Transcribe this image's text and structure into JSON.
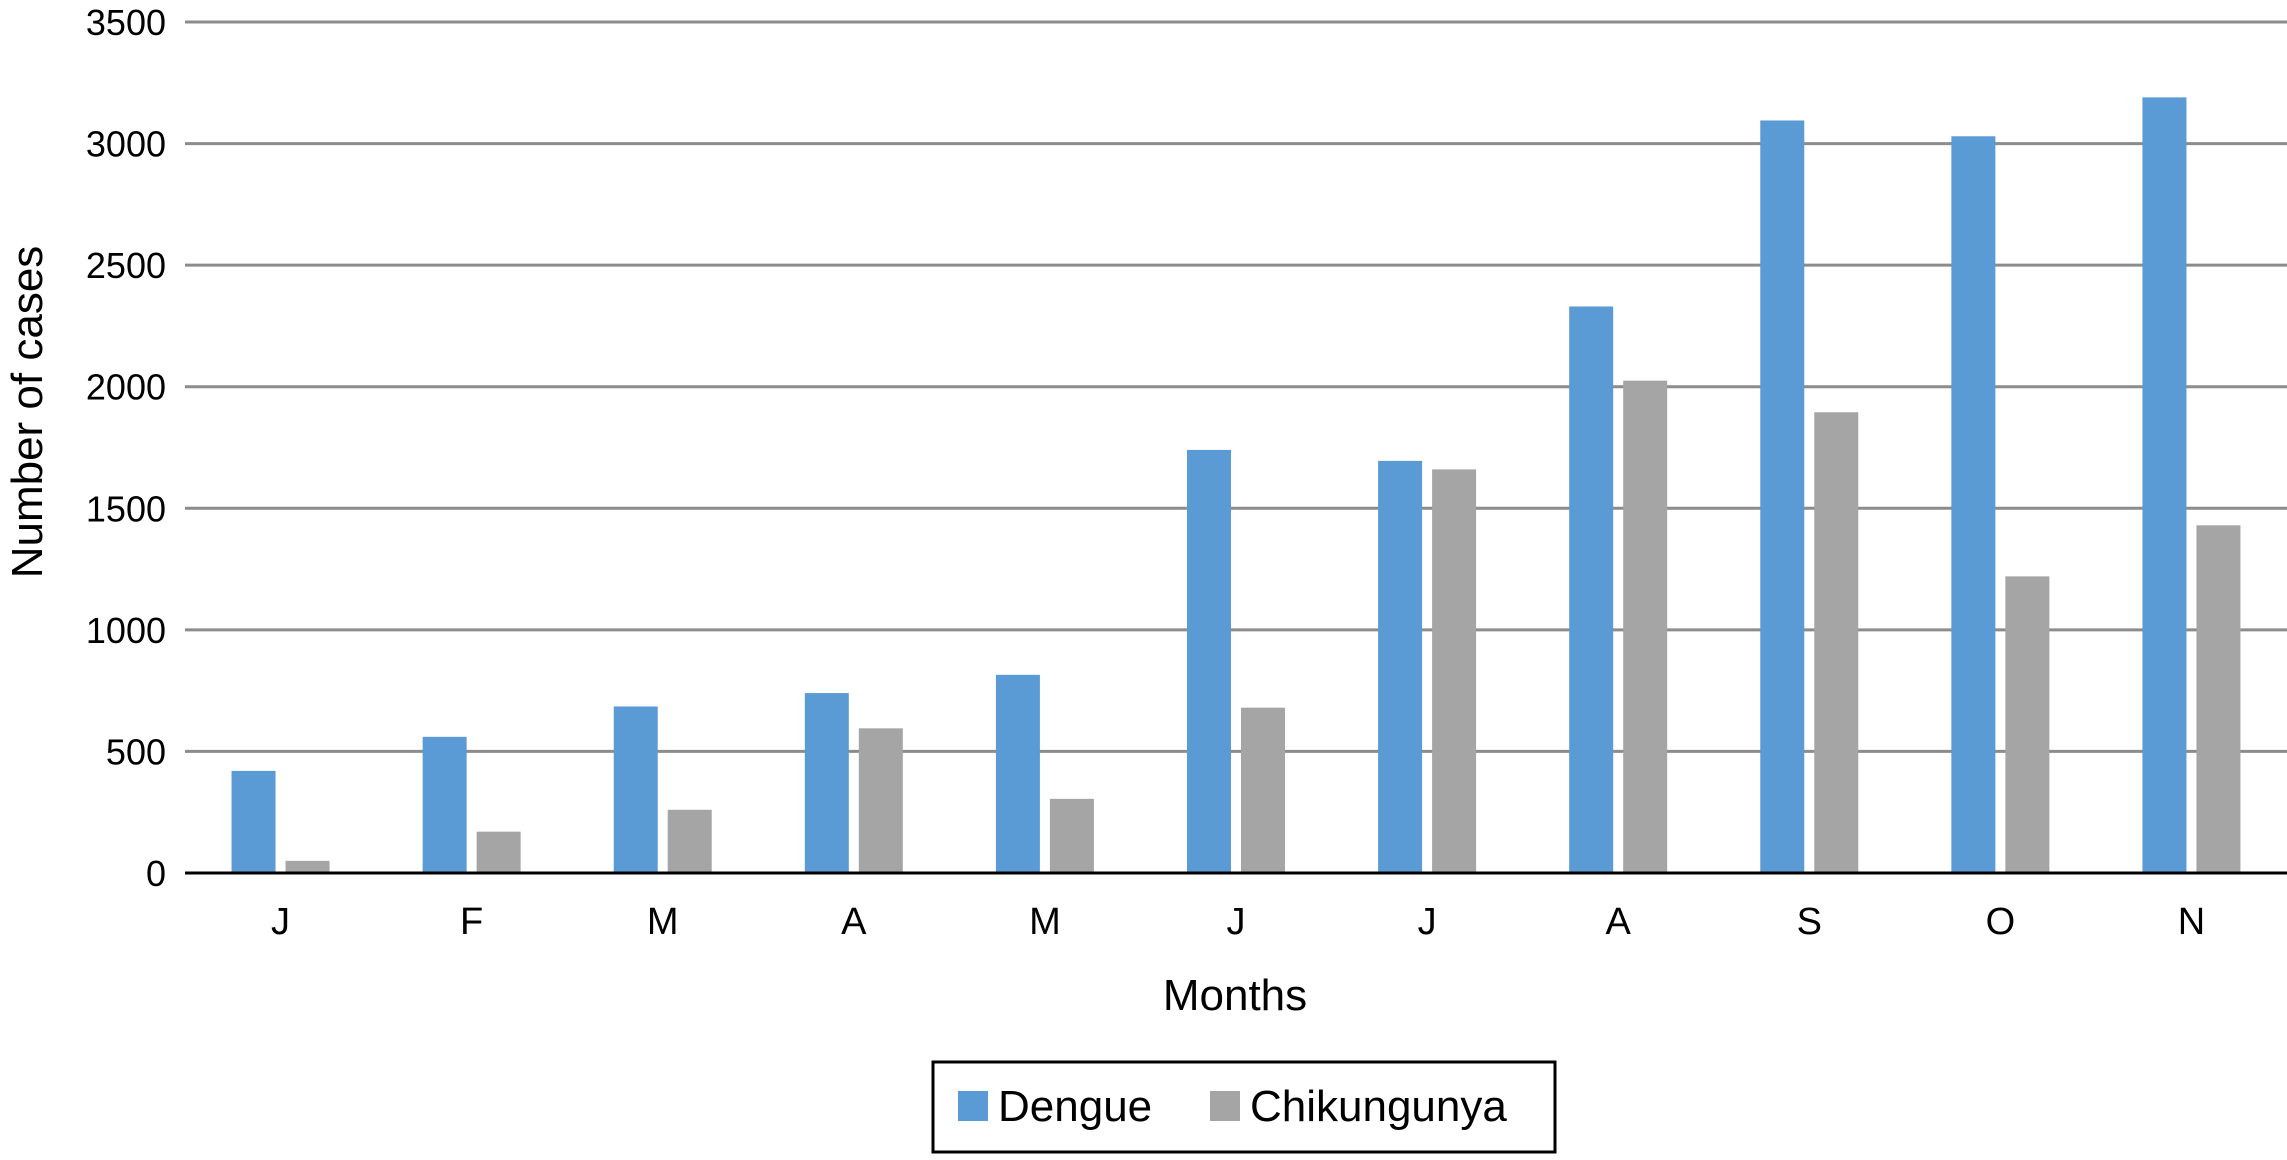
{
  "chart_data": {
    "type": "bar",
    "title": "",
    "xlabel": "Months",
    "ylabel": "Number of cases",
    "categories": [
      "J",
      "F",
      "M",
      "A",
      "M",
      "J",
      "J",
      "A",
      "S",
      "O",
      "N"
    ],
    "series": [
      {
        "name": "Dengue",
        "color": "#5b9bd5",
        "values": [
          420,
          560,
          685,
          740,
          815,
          1740,
          1695,
          2330,
          3095,
          3030,
          3190
        ]
      },
      {
        "name": "Chikungunya",
        "color": "#a5a5a5",
        "values": [
          50,
          170,
          260,
          595,
          305,
          680,
          1660,
          2025,
          1895,
          1220,
          1430
        ]
      }
    ],
    "ylim": [
      0,
      3500
    ],
    "yticks": [
      "0",
      "500",
      "1000",
      "1500",
      "2000",
      "2500",
      "3000",
      "3500"
    ],
    "grid": true,
    "legend": "bottom-center"
  }
}
